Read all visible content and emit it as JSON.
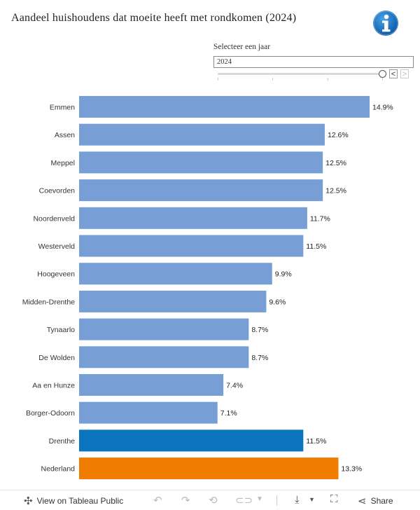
{
  "title": "Aandeel huishoudens dat moeite heeft met rondkomen (2024)",
  "selector": {
    "label": "Selecteer een jaar",
    "value": "2024",
    "prev": "<",
    "next": ">"
  },
  "chart_data": {
    "type": "bar",
    "orientation": "horizontal",
    "title": "Aandeel huishoudens dat moeite heeft met rondkomen (2024)",
    "xlim": [
      0,
      15
    ],
    "categories": [
      "Emmen",
      "Assen",
      "Meppel",
      "Coevorden",
      "Noordenveld",
      "Westerveld",
      "Hoogeveen",
      "Midden-Drenthe",
      "Tynaarlo",
      "De Wolden",
      "Aa en Hunze",
      "Borger-Odoorn",
      "Drenthe",
      "Nederland"
    ],
    "values": [
      14.9,
      12.6,
      12.5,
      12.5,
      11.7,
      11.5,
      9.9,
      9.6,
      8.7,
      8.7,
      7.4,
      7.1,
      11.5,
      13.3
    ],
    "labels": [
      "14.9%",
      "12.6%",
      "12.5%",
      "12.5%",
      "11.7%",
      "11.5%",
      "9.9%",
      "9.6%",
      "8.7%",
      "8.7%",
      "7.4%",
      "7.1%",
      "11.5%",
      "13.3%"
    ],
    "colors": [
      "#779fd6",
      "#779fd6",
      "#779fd6",
      "#779fd6",
      "#779fd6",
      "#779fd6",
      "#779fd6",
      "#779fd6",
      "#779fd6",
      "#779fd6",
      "#779fd6",
      "#779fd6",
      "#0a75be",
      "#f07d00"
    ]
  },
  "footer": {
    "view_label": "View on Tableau Public",
    "share_label": "Share"
  }
}
